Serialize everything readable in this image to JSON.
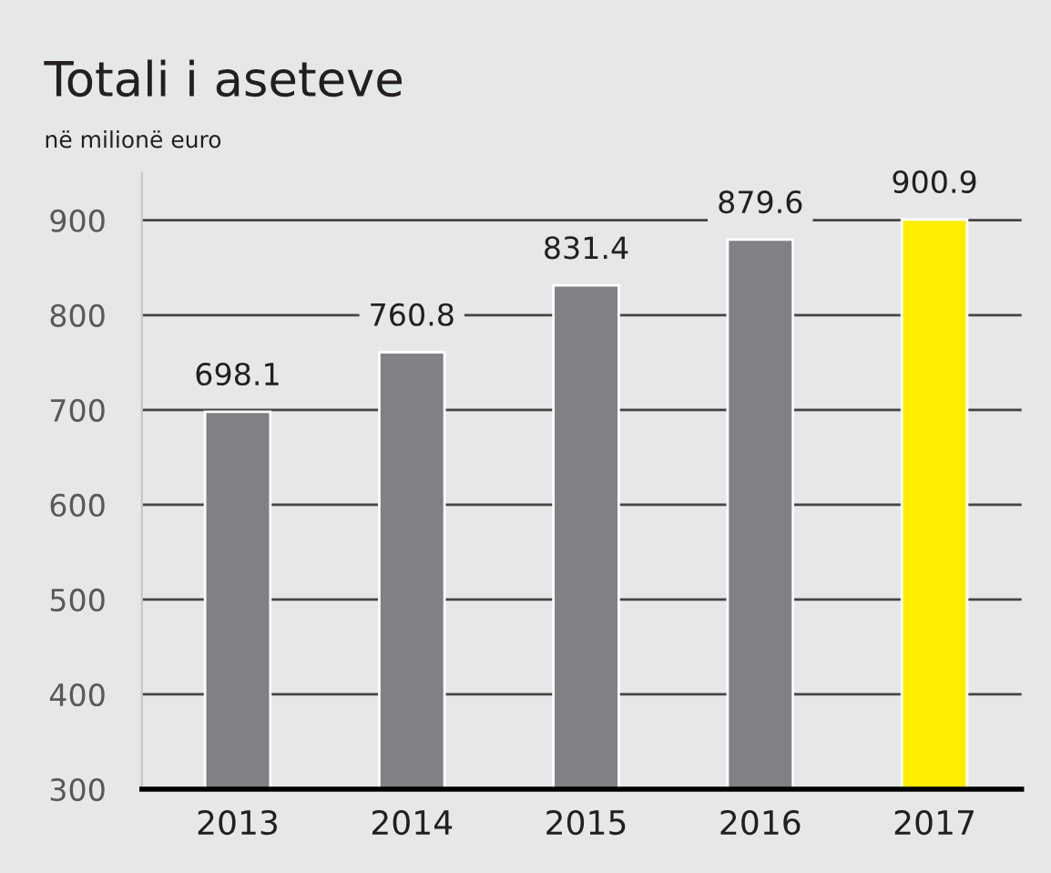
{
  "chart_data": {
    "type": "bar",
    "title": "Totali i aseteve",
    "subtitle": "në milionë euro",
    "categories": [
      "2013",
      "2014",
      "2015",
      "2016",
      "2017"
    ],
    "values": [
      698.1,
      760.8,
      831.4,
      879.6,
      900.9
    ],
    "colors": [
      "#808184",
      "#808184",
      "#808184",
      "#808184",
      "#ffed00"
    ],
    "ylim": [
      300,
      950
    ],
    "yticks": [
      300,
      400,
      500,
      600,
      700,
      800,
      900
    ],
    "grid": "y",
    "data_labels": true
  }
}
